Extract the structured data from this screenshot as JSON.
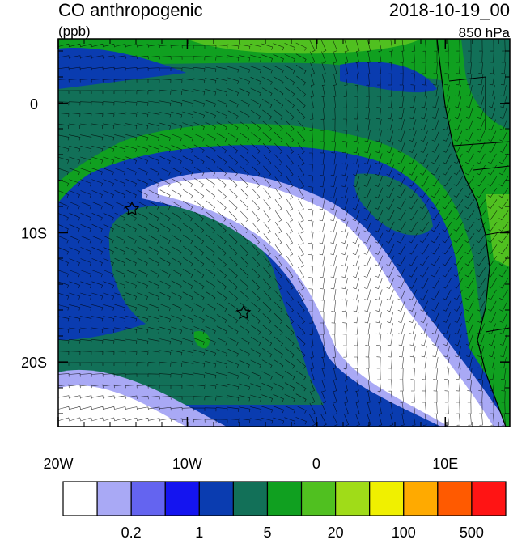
{
  "header": {
    "title": "CO anthropogenic",
    "units": "(ppb)",
    "date": "2018-10-19_00",
    "level": "850 hPa"
  },
  "map": {
    "xlim": [
      -20,
      15
    ],
    "ylim": [
      -25,
      5
    ],
    "xticks": [
      {
        "value": -20,
        "label": "20W"
      },
      {
        "value": -10,
        "label": "10W"
      },
      {
        "value": 0,
        "label": "0"
      },
      {
        "value": 10,
        "label": "10E"
      }
    ],
    "yticks": [
      {
        "value": 0,
        "label": "0"
      },
      {
        "value": -10,
        "label": "10S"
      },
      {
        "value": -20,
        "label": "20S"
      }
    ]
  },
  "colorbar": {
    "colors": [
      "#ffffff",
      "#a9a9f5",
      "#6464f0",
      "#1414f0",
      "#0a3cb0",
      "#127058",
      "#10a020",
      "#50c020",
      "#a0dc18",
      "#f0f000",
      "#ffaa00",
      "#ff5a00",
      "#ff1414"
    ],
    "labels": [
      0.2,
      1,
      5,
      20,
      100,
      500
    ]
  }
}
